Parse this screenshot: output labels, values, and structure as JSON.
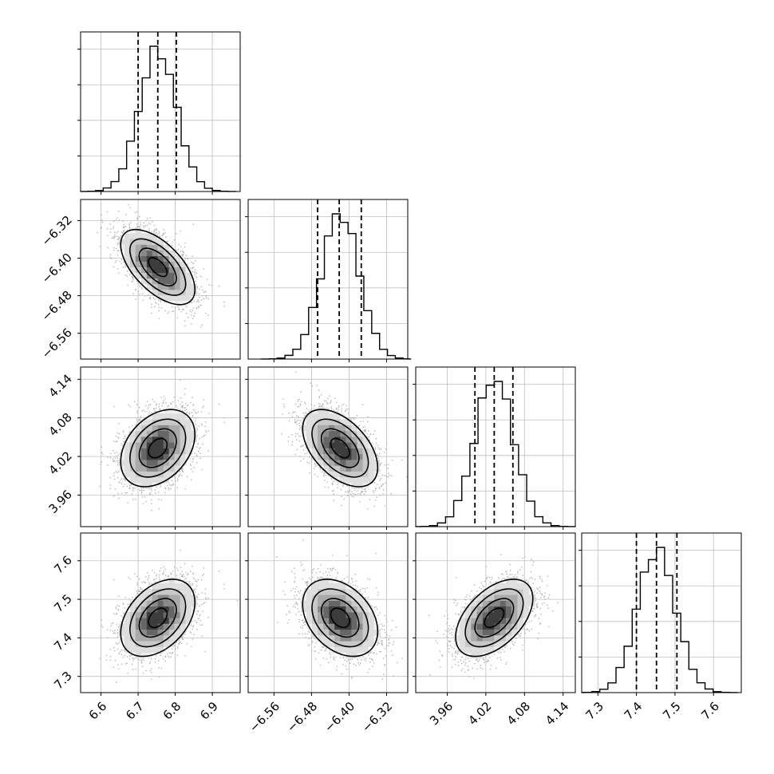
{
  "figure": {
    "type": "corner_plot",
    "background": "#ffffff",
    "color_scheme": {
      "line": "#000000",
      "scatter": "#b4b4b4",
      "grid": "#bfbfbf",
      "density": [
        "#efefef",
        "#dedede",
        "#c8c8c8",
        "#aaaaaa",
        "#8a8a8a",
        "#666666",
        "#3c3c3c"
      ]
    }
  },
  "chart_data": {
    "type": "corner",
    "parameters": [
      {
        "id": "p0",
        "range": [
          6.545,
          6.975
        ],
        "ticks": [
          6.6,
          6.7,
          6.8,
          6.9
        ],
        "tick_labels": [
          "6.6",
          "6.7",
          "6.8",
          "6.9"
        ],
        "mean": 6.753,
        "sigma": 0.05,
        "quantiles": [
          6.7,
          6.753,
          6.803
        ]
      },
      {
        "id": "p1",
        "range": [
          -6.615,
          -6.275
        ],
        "ticks": [
          -6.56,
          -6.48,
          -6.4,
          -6.32
        ],
        "tick_labels": [
          "−6.56",
          "−6.48",
          "−6.40",
          "−6.32"
        ],
        "mean": -6.419,
        "sigma": 0.04,
        "quantiles": [
          -6.467,
          -6.421,
          -6.374
        ]
      },
      {
        "id": "p2",
        "range": [
          3.911,
          4.159
        ],
        "ticks": [
          3.96,
          4.02,
          4.08,
          4.14
        ],
        "tick_labels": [
          "3.96",
          "4.02",
          "4.08",
          "4.14"
        ],
        "mean": 4.033,
        "sigma": 0.03,
        "quantiles": [
          4.003,
          4.033,
          4.062
        ]
      },
      {
        "id": "p3",
        "range": [
          7.258,
          7.672
        ],
        "ticks": [
          7.3,
          7.4,
          7.5,
          7.6
        ],
        "tick_labels": [
          "7.3",
          "7.4",
          "7.5",
          "7.6"
        ],
        "mean": 7.452,
        "sigma": 0.05,
        "quantiles": [
          7.4,
          7.452,
          7.505
        ]
      }
    ],
    "correlations": [
      {
        "pair": [
          0,
          1
        ],
        "rho": -0.6
      },
      {
        "pair": [
          0,
          2
        ],
        "rho": 0.35
      },
      {
        "pair": [
          1,
          2
        ],
        "rho": -0.5
      },
      {
        "pair": [
          0,
          3
        ],
        "rho": 0.4
      },
      {
        "pair": [
          1,
          3
        ],
        "rho": -0.35
      },
      {
        "pair": [
          2,
          3
        ],
        "rho": 0.5
      }
    ],
    "histogram_bins": 20,
    "contour_levels_sigma": [
      0.5,
      1.0,
      1.5,
      2.0
    ],
    "samples_per_panel": 2500,
    "quantile_lines": "dashed",
    "grid": true
  }
}
